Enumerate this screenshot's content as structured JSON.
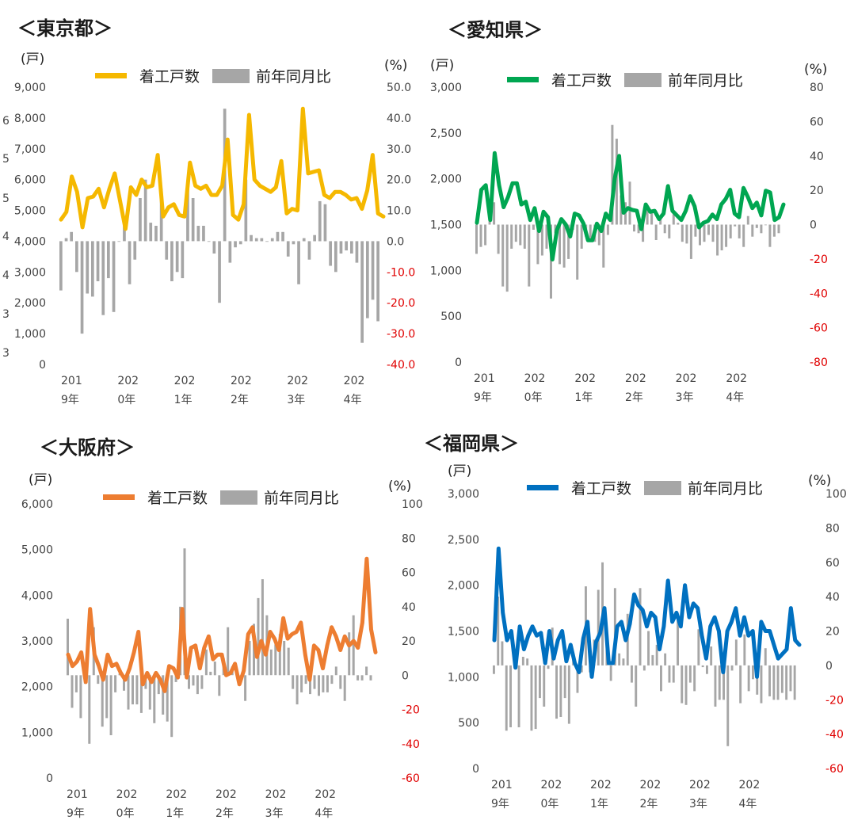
{
  "stray_labels": [
    "6",
    "5",
    "5",
    "4",
    "4",
    "3",
    "3"
  ],
  "colors": {
    "bar": "#a6a6a6",
    "axis_text": "#444444",
    "neg_text": "#e00000"
  },
  "chart_data": [
    {
      "type": "bar+line",
      "title": "＜東京都＞",
      "left_unit": "(戸)",
      "right_unit": "(%)",
      "legend": {
        "line": "着工戸数",
        "bar": "前年同月比"
      },
      "line_color": "#f5b800",
      "ylim": [
        0,
        9000
      ],
      "y2lim": [
        -40,
        50
      ],
      "yticks": [
        "9,000",
        "8,000",
        "7,000",
        "6,000",
        "5,000",
        "4,000",
        "3,000",
        "2,000",
        "1,000",
        "0"
      ],
      "y2ticks": [
        "50.0",
        "40.0",
        "30.0",
        "20.0",
        "10.0",
        "0.0",
        "-10.0",
        "-20.0",
        "-30.0",
        "-40.0"
      ],
      "xticks": [
        [
          "201",
          "9年"
        ],
        [
          "202",
          "0年"
        ],
        [
          "202",
          "1年"
        ],
        [
          "202",
          "2年"
        ],
        [
          "202",
          "3年"
        ],
        [
          "202",
          "4年"
        ]
      ],
      "line_values": [
        4700,
        4950,
        6100,
        5600,
        4450,
        5400,
        5450,
        5700,
        5100,
        5700,
        6200,
        5300,
        4400,
        5750,
        5500,
        6000,
        5750,
        5800,
        6800,
        4800,
        5100,
        5200,
        4850,
        4800,
        6550,
        5800,
        5700,
        5800,
        5500,
        5500,
        5800,
        7300,
        4850,
        4700,
        5200,
        8100,
        6000,
        5800,
        5700,
        5600,
        5750,
        6600,
        4900,
        5050,
        5000,
        8300,
        6200,
        6250,
        6300,
        5500,
        5400,
        5600,
        5600,
        5500,
        5350,
        5400,
        5050,
        5650,
        6800,
        4900,
        4800
      ],
      "bar_values": [
        -16,
        1,
        3,
        -10,
        -30,
        -17,
        -18,
        -13,
        -24,
        -12,
        -23,
        0,
        7,
        -14,
        -6,
        14,
        20,
        6,
        5,
        17,
        -6,
        -13,
        -10,
        -12,
        18,
        14,
        5,
        5,
        0,
        -4,
        -20,
        43,
        -7,
        -2,
        -1,
        20,
        2,
        1,
        1,
        0,
        1,
        3,
        3,
        -5,
        -1,
        -14,
        1,
        -6,
        2,
        13,
        12,
        -8,
        -10,
        -4,
        -3,
        -4,
        -7,
        -33,
        -25,
        -19,
        -26
      ]
    },
    {
      "type": "bar+line",
      "title": "＜愛知県＞",
      "left_unit": "(戸)",
      "right_unit": "(%)",
      "legend": {
        "line": "着工戸数",
        "bar": "前年同月比"
      },
      "line_color": "#00a651",
      "ylim": [
        0,
        3000
      ],
      "y2lim": [
        -80,
        80
      ],
      "yticks": [
        "3,000",
        "2,500",
        "2,000",
        "1,500",
        "1,000",
        "500",
        "0"
      ],
      "y2ticks": [
        "80",
        "60",
        "40",
        "20",
        "0",
        "-20",
        "-40",
        "-60",
        "-80"
      ],
      "xticks": [
        [
          "201",
          "9年"
        ],
        [
          "202",
          "0年"
        ],
        [
          "202",
          "1年"
        ],
        [
          "202",
          "2年"
        ],
        [
          "202",
          "3年"
        ],
        [
          "202",
          "4年"
        ]
      ],
      "line_values": [
        1520,
        1880,
        1930,
        1550,
        2280,
        1930,
        1690,
        1800,
        1950,
        1950,
        1720,
        1750,
        1550,
        1680,
        1430,
        1640,
        1580,
        1120,
        1440,
        1560,
        1500,
        1370,
        1620,
        1600,
        1510,
        1330,
        1330,
        1510,
        1430,
        1620,
        1550,
        2000,
        2250,
        1630,
        1680,
        1660,
        1650,
        1450,
        1720,
        1640,
        1650,
        1560,
        1620,
        1920,
        1650,
        1600,
        1550,
        1650,
        1810,
        1700,
        1470,
        1520,
        1540,
        1610,
        1560,
        1720,
        1780,
        1880,
        1620,
        1580,
        1900,
        1800,
        1680,
        1740,
        1600,
        1870,
        1850,
        1550,
        1580,
        1720
      ],
      "bar_values": [
        -17,
        -13,
        -12,
        5,
        13,
        -17,
        -36,
        -39,
        -14,
        -10,
        -12,
        -14,
        -36,
        -3,
        -23,
        -18,
        -14,
        -43,
        -5,
        -23,
        -25,
        -20,
        -3,
        -32,
        -14,
        -7,
        -8,
        -10,
        -12,
        -25,
        -6,
        58,
        50,
        17,
        13,
        25,
        -4,
        -5,
        -10,
        9,
        8,
        -9,
        5,
        -5,
        -8,
        6,
        1,
        -10,
        -11,
        -20,
        -7,
        -12,
        -10,
        -6,
        -10,
        -18,
        -15,
        -13,
        -8,
        -1,
        -8,
        -13,
        5,
        -7,
        -2,
        -5,
        0,
        -13,
        -7,
        -5
      ]
    },
    {
      "type": "bar+line",
      "title": "＜大阪府＞",
      "left_unit": "(戸)",
      "right_unit": "(%)",
      "legend": {
        "line": "着工戸数",
        "bar": "前年同月比"
      },
      "line_color": "#ed7d31",
      "ylim": [
        0,
        6000
      ],
      "y2lim": [
        -60,
        100
      ],
      "yticks": [
        "6,000",
        "5,000",
        "4,000",
        "3,000",
        "2,000",
        "1,000",
        "0"
      ],
      "y2ticks": [
        "100",
        "80",
        "60",
        "40",
        "20",
        "0",
        "-20",
        "-40",
        "-60"
      ],
      "xticks": [
        [
          "201",
          "9年"
        ],
        [
          "202",
          "0年"
        ],
        [
          "202",
          "1年"
        ],
        [
          "202",
          "2年"
        ],
        [
          "202",
          "3年"
        ],
        [
          "202",
          "4年"
        ]
      ],
      "line_values": [
        2700,
        2450,
        2550,
        2750,
        2100,
        3700,
        2700,
        2450,
        2150,
        2700,
        2450,
        2500,
        2300,
        2150,
        2400,
        2750,
        3200,
        2050,
        2300,
        2100,
        2300,
        2150,
        1900,
        2450,
        2400,
        2200,
        3700,
        2200,
        2850,
        2900,
        2400,
        2850,
        3100,
        2600,
        2700,
        2700,
        2250,
        2300,
        2500,
        2050,
        2350,
        3150,
        3300,
        2650,
        3000,
        2700,
        3200,
        3050,
        2800,
        3500,
        3050,
        3150,
        3200,
        3400,
        2700,
        2150,
        2900,
        2800,
        2400,
        2900,
        3300,
        3100,
        2800,
        3100,
        2900,
        3000,
        2850,
        3400,
        4800,
        3250,
        2750
      ],
      "bar_values": [
        33,
        -19,
        -10,
        -25,
        -5,
        -40,
        28,
        -5,
        -30,
        -25,
        -35,
        -10,
        1,
        -9,
        -20,
        -17,
        -17,
        -22,
        -8,
        -20,
        -28,
        -11,
        -23,
        -27,
        -36,
        -4,
        40,
        74,
        -8,
        -6,
        -11,
        -8,
        15,
        2,
        8,
        -12,
        10,
        28,
        5,
        3,
        -2,
        -15,
        20,
        30,
        45,
        56,
        35,
        15,
        18,
        24,
        20,
        16,
        -8,
        -17,
        -10,
        -5,
        -11,
        -8,
        -12,
        -10,
        -10,
        -5,
        5,
        -8,
        -15,
        25,
        35,
        -3,
        -3,
        5,
        -3
      ]
    },
    {
      "type": "bar+line",
      "title": "＜福岡県＞",
      "left_unit": "(戸)",
      "right_unit": "(%)",
      "legend": {
        "line": "着工戸数",
        "bar": "前年同月比"
      },
      "line_color": "#0070c0",
      "ylim": [
        0,
        3000
      ],
      "y2lim": [
        -60,
        100
      ],
      "yticks": [
        "3,000",
        "2,500",
        "2,000",
        "1,500",
        "1,000",
        "500",
        "0"
      ],
      "y2ticks": [
        "100",
        "80",
        "60",
        "40",
        "20",
        "0",
        "-20",
        "-40",
        "-60"
      ],
      "xticks": [
        [
          "201",
          "9年"
        ],
        [
          "202",
          "0年"
        ],
        [
          "202",
          "1年"
        ],
        [
          "202",
          "2年"
        ],
        [
          "202",
          "3年"
        ],
        [
          "202",
          "4年"
        ]
      ],
      "line_values": [
        1400,
        2400,
        1700,
        1400,
        1500,
        1100,
        1550,
        1300,
        1450,
        1550,
        1450,
        1480,
        1150,
        1500,
        1200,
        1400,
        1500,
        1170,
        1350,
        1150,
        1050,
        1420,
        1600,
        1000,
        1380,
        1480,
        1750,
        1150,
        1150,
        1550,
        1600,
        1400,
        1580,
        1900,
        1780,
        1730,
        1550,
        1700,
        1650,
        1300,
        1550,
        2050,
        1600,
        1700,
        1550,
        2000,
        1650,
        1800,
        1750,
        1450,
        1200,
        1550,
        1650,
        1500,
        1050,
        1500,
        1600,
        1750,
        1450,
        1650,
        1450,
        1500,
        1000,
        1600,
        1500,
        1500,
        1350,
        1200,
        1250,
        1300,
        1750,
        1400,
        1350
      ],
      "bar_values": [
        -5,
        40,
        14,
        -38,
        -36,
        -2,
        -36,
        5,
        4,
        -38,
        -37,
        -19,
        -24,
        -2,
        22,
        -31,
        -30,
        -19,
        -34,
        5,
        -16,
        -4,
        46,
        -4,
        15,
        44,
        60,
        22,
        -9,
        45,
        7,
        4,
        30,
        -10,
        -24,
        45,
        -3,
        20,
        6,
        12,
        -15,
        7,
        -10,
        -10,
        30,
        -22,
        -23,
        -10,
        -15,
        21,
        -1,
        -5,
        11,
        -24,
        -20,
        -20,
        -47,
        -3,
        15,
        -22,
        18,
        -15,
        -8,
        -17,
        -22,
        10,
        -18,
        -20,
        -20,
        -16,
        -20,
        -15,
        -20
      ]
    }
  ]
}
